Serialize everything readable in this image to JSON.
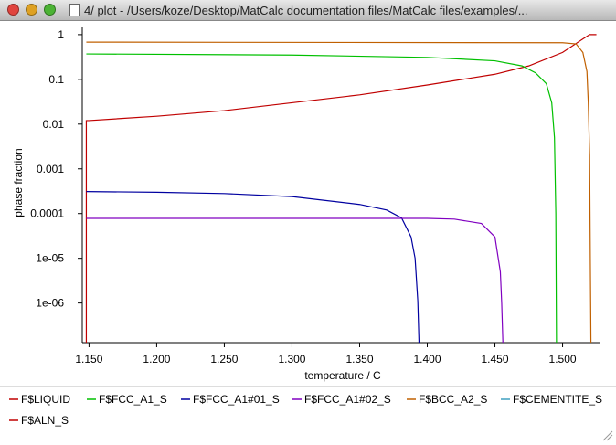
{
  "window": {
    "title": "4/ plot - /Users/koze/Desktop/MatCalc documentation files/MatCalc files/examples/..."
  },
  "chart_data": {
    "type": "line",
    "xlabel": "temperature / C",
    "ylabel": "phase fraction",
    "log_y": true,
    "xlim": [
      1.145,
      1.528
    ],
    "ylim": [
      1.3e-07,
      1.45
    ],
    "xticks": [
      {
        "value": 1.15,
        "label": "1.150"
      },
      {
        "value": 1.2,
        "label": "1.200"
      },
      {
        "value": 1.25,
        "label": "1.250"
      },
      {
        "value": 1.3,
        "label": "1.300"
      },
      {
        "value": 1.35,
        "label": "1.350"
      },
      {
        "value": 1.4,
        "label": "1.400"
      },
      {
        "value": 1.45,
        "label": "1.450"
      },
      {
        "value": 1.5,
        "label": "1.500"
      }
    ],
    "yticks": [
      1,
      0.1,
      0.01,
      0.001,
      0.0001,
      {
        "value": 1e-05,
        "label": "1e-05"
      },
      {
        "value": 1e-06,
        "label": "1e-06"
      }
    ],
    "series": [
      {
        "name": "F$LIQUID",
        "color": "#c00000",
        "x": [
          1.148,
          1.148,
          1.15,
          1.2,
          1.25,
          1.3,
          1.35,
          1.4,
          1.45,
          1.475,
          1.5,
          1.515,
          1.52,
          1.525
        ],
        "values": [
          1e-07,
          0.012,
          0.012,
          0.015,
          0.02,
          0.03,
          0.045,
          0.075,
          0.13,
          0.2,
          0.4,
          0.8,
          1,
          1
        ]
      },
      {
        "name": "F$FCC_A1_S",
        "color": "#00c000",
        "x": [
          1.148,
          1.3,
          1.4,
          1.45,
          1.47,
          1.48,
          1.488,
          1.492,
          1.494,
          1.495,
          1.4955
        ],
        "values": [
          0.37,
          0.35,
          0.31,
          0.26,
          0.2,
          0.14,
          0.08,
          0.03,
          0.005,
          0.0001,
          1e-07
        ]
      },
      {
        "name": "F$FCC_A1#01_S",
        "color": "#0000a0",
        "x": [
          1.148,
          1.2,
          1.25,
          1.3,
          1.35,
          1.37,
          1.381,
          1.388,
          1.391,
          1.393,
          1.394
        ],
        "values": [
          0.00031,
          0.0003,
          0.00028,
          0.00024,
          0.00016,
          0.00012,
          8e-05,
          3e-05,
          1e-05,
          1.1e-06,
          1e-07
        ]
      },
      {
        "name": "F$FCC_A1#02_S",
        "color": "#8000c0",
        "x": [
          1.148,
          1.4,
          1.42,
          1.44,
          1.45,
          1.454,
          1.455,
          1.456
        ],
        "values": [
          7.8e-05,
          7.8e-05,
          7.5e-05,
          6e-05,
          3e-05,
          5e-06,
          1e-06,
          1e-07
        ]
      },
      {
        "name": "F$BCC_A2_S",
        "color": "#c06000",
        "x": [
          1.148,
          1.5,
          1.51,
          1.515,
          1.518,
          1.519,
          1.52,
          1.5205,
          1.521
        ],
        "values": [
          0.68,
          0.66,
          0.62,
          0.4,
          0.15,
          0.03,
          0.002,
          1e-05,
          1e-07
        ]
      },
      {
        "name": "F$CEMENTITE_S",
        "color": "#40a0c0",
        "x": [],
        "values": []
      },
      {
        "name": "F$ALN_S",
        "color": "#c00000",
        "x": [],
        "values": []
      }
    ]
  }
}
